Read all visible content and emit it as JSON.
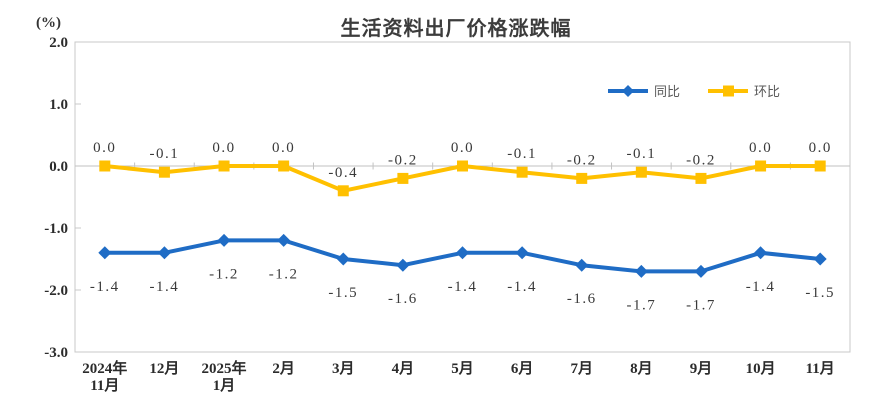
{
  "chart_data": {
    "type": "line",
    "title": "生活资料出厂价格涨跌幅",
    "ylabel": "(%)",
    "xlabel": "",
    "ylim": [
      -3.0,
      2.0
    ],
    "yticks": [
      "2.0",
      "1.0",
      "0.0",
      "-1.0",
      "-2.0",
      "-3.0"
    ],
    "grid": false,
    "legend_position": "top-right",
    "categories": [
      "2024年\n11月",
      "12月",
      "2025年\n1月",
      "2月",
      "3月",
      "4月",
      "5月",
      "6月",
      "7月",
      "8月",
      "9月",
      "10月",
      "11月"
    ],
    "series": [
      {
        "name": "同比",
        "marker": "diamond",
        "color": "#1f6cc5",
        "label_position": "below",
        "values": [
          -1.4,
          -1.4,
          -1.2,
          -1.2,
          -1.5,
          -1.6,
          -1.4,
          -1.4,
          -1.6,
          -1.7,
          -1.7,
          -1.4,
          -1.5
        ],
        "labels": [
          "-1.4",
          "-1.4",
          "-1.2",
          "-1.2",
          "-1.5",
          "-1.6",
          "-1.4",
          "-1.4",
          "-1.6",
          "-1.7",
          "-1.7",
          "-1.4",
          "-1.5"
        ]
      },
      {
        "name": "环比",
        "marker": "square",
        "color": "#ffc000",
        "label_position": "above",
        "values": [
          0.0,
          -0.1,
          0.0,
          0.0,
          -0.4,
          -0.2,
          0.0,
          -0.1,
          -0.2,
          -0.1,
          -0.2,
          0.0,
          0.0
        ],
        "labels": [
          "0.0",
          "-0.1",
          "0.0",
          "0.0",
          "-0.4",
          "-0.2",
          "0.0",
          "-0.1",
          "-0.2",
          "-0.1",
          "-0.2",
          "0.0",
          "0.0"
        ]
      }
    ],
    "colors": {
      "axis_line": "#c8c8c8",
      "zero_line": "#c2c2c2",
      "tick_label": "#2b2b2b",
      "data_label": "#3a3a3a",
      "legend_text": "#595959",
      "title_text": "#3c3c3c"
    }
  }
}
